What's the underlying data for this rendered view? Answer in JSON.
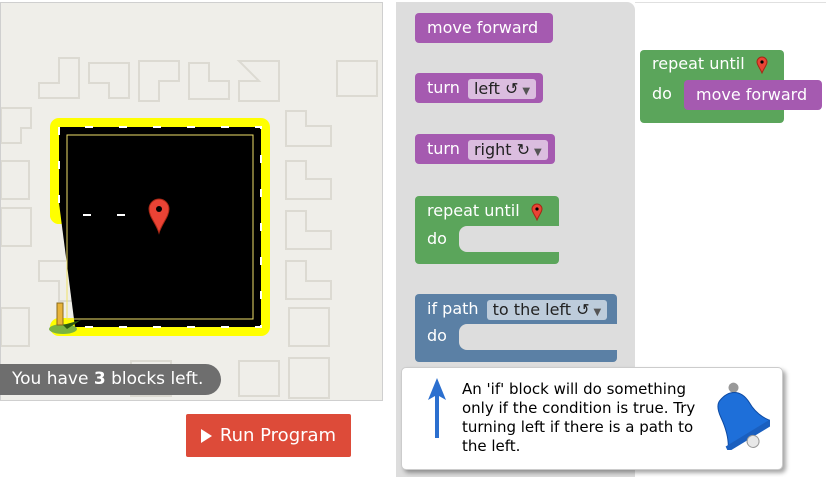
{
  "maze": {
    "status_prefix": "You have ",
    "status_count": "3",
    "status_suffix": " blocks left."
  },
  "run_button": {
    "label": "Run Program"
  },
  "toolbox": {
    "move_forward": "move forward",
    "turn_left": {
      "label": "turn",
      "value": "left ↺"
    },
    "turn_right": {
      "label": "turn",
      "value": "right ↻"
    },
    "repeat": {
      "label": "repeat until",
      "do": "do"
    },
    "if_path": {
      "label": "if path",
      "value": "to the left ↺",
      "do": "do"
    }
  },
  "workspace": {
    "repeat_label": "repeat until",
    "do_label": "do",
    "inner_block": "move forward"
  },
  "tooltip": {
    "text": "An 'if' block will do something only if the condition is true. Try turning left if there is a path to the left."
  },
  "colors": {
    "motion": "#a55ab0",
    "loop": "#5ba55b",
    "logic": "#5b80a5",
    "run": "#dd4b39",
    "path": "#ffff00"
  }
}
